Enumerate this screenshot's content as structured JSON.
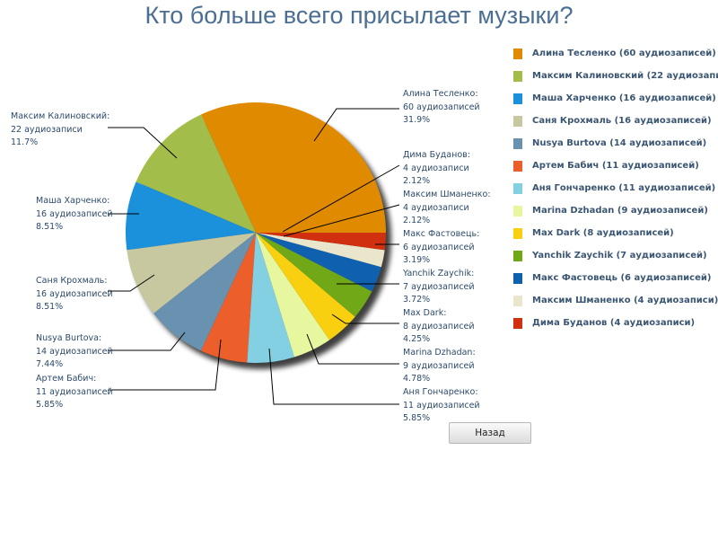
{
  "chart_data": {
    "type": "pie",
    "title": "Кто больше всего присылает музыки?",
    "start_angle": "3 o'clock, counter-clockwise",
    "legend_position": "right",
    "slices": [
      {
        "name": "Алина Тесленко",
        "value": 60,
        "count_text": "60 аудиозаписей",
        "percent": "31.9%",
        "legend": "Алина Тесленко (60 аудиозаписей)",
        "color": "#e08a00"
      },
      {
        "name": "Максим Калиновский",
        "value": 22,
        "count_text": "22 аудиозаписи",
        "percent": "11.7%",
        "legend": "Максим Калиновский (22 аудиозаписи)",
        "color": "#a3bd4a"
      },
      {
        "name": "Маша Харченко",
        "value": 16,
        "count_text": "16 аудиозаписей",
        "percent": "8.51%",
        "legend": "Маша Харченко (16 аудиозаписей)",
        "color": "#1b90db"
      },
      {
        "name": "Саня Крохмаль",
        "value": 16,
        "count_text": "16 аудиозаписей",
        "percent": "8.51%",
        "legend": "Саня Крохмаль (16 аудиозаписей)",
        "color": "#c8c8a0"
      },
      {
        "name": "Nusya Burtova",
        "value": 14,
        "count_text": "14 аудиозаписей",
        "percent": "7.44%",
        "legend": "Nusya Burtova (14 аудиозаписей)",
        "color": "#6991b0"
      },
      {
        "name": "Артем Бабич",
        "value": 11,
        "count_text": "11 аудиозаписей",
        "percent": "5.85%",
        "legend": "Артем Бабич (11 аудиозаписей)",
        "color": "#ec5e2a"
      },
      {
        "name": "Аня Гончаренко",
        "value": 11,
        "count_text": "11 аудиозаписей",
        "percent": "5.85%",
        "legend": "Аня Гончаренко (11 аудиозаписей)",
        "color": "#82d0e2"
      },
      {
        "name": "Marina Dzhadan",
        "value": 9,
        "count_text": "9 аудиозаписей",
        "percent": "4.78%",
        "legend": "Marina Dzhadan (9 аудиозаписей)",
        "color": "#e6f7a0"
      },
      {
        "name": "Max Dark",
        "value": 8,
        "count_text": "8 аудиозаписей",
        "percent": "4.25%",
        "legend": "Max Dark (8 аудиозаписей)",
        "color": "#f8d010"
      },
      {
        "name": "Yanchik Zaychik",
        "value": 7,
        "count_text": "7 аудиозаписей",
        "percent": "3.72%",
        "legend": "Yanchik Zaychik (7 аудиозаписей)",
        "color": "#70a818"
      },
      {
        "name": "Макс Фастовець",
        "value": 6,
        "count_text": "6 аудиозаписей",
        "percent": "3.19%",
        "legend": "Макс Фастовець (6 аудиозаписей)",
        "color": "#1060b0"
      },
      {
        "name": "Максим Шманенко",
        "value": 4,
        "count_text": "4 аудиозаписи",
        "percent": "2.12%",
        "legend": "Максим Шманенко (4 аудиозаписи)",
        "color": "#eae6cc"
      },
      {
        "name": "Дима Буданов",
        "value": 4,
        "count_text": "4 аудиозаписи",
        "percent": "2.12%",
        "legend": "Дима Буданов (4 аудиозаписи)",
        "color": "#d03010"
      }
    ]
  },
  "buttons": {
    "back": "Назад"
  }
}
